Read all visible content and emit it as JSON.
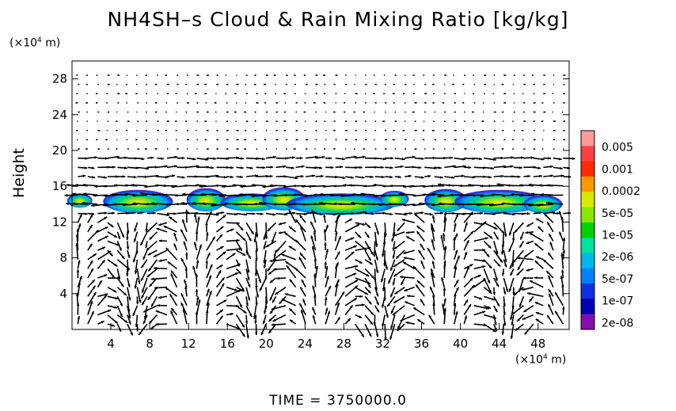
{
  "title": "NH4SH–s Cloud & Rain Mixing Ratio [kg/kg]",
  "ylabel": "Height",
  "y_unit": "(×10⁴ m)",
  "x_unit": "(×10⁴ m)",
  "time_label": "TIME = 3750000.0",
  "chart_data": {
    "type": "heatmap",
    "title": "NH4SH–s Cloud & Rain Mixing Ratio [kg/kg]",
    "xlabel": "",
    "ylabel": "Height",
    "x_unit": "(×10⁴ m)",
    "y_unit": "(×10⁴ m)",
    "xlim": [
      0,
      51.2
    ],
    "ylim": [
      0,
      30
    ],
    "x_ticks": [
      4,
      8,
      12,
      16,
      20,
      24,
      28,
      32,
      36,
      40,
      44,
      48
    ],
    "y_ticks": [
      4,
      8,
      12,
      16,
      20,
      24,
      28
    ],
    "colorbar": {
      "labels": [
        "0.005",
        "0.001",
        "0.0002",
        "5e-05",
        "1e-05",
        "2e-06",
        "5e-07",
        "1e-07",
        "2e-08"
      ],
      "colors": [
        "#ff9a9a",
        "#ff4040",
        "#ff2a00",
        "#ff9900",
        "#d8e800",
        "#88e600",
        "#00d000",
        "#00e0a0",
        "#00b8e8",
        "#0080ff",
        "#1030e0",
        "#0000b0",
        "#8010b0"
      ]
    },
    "cloud_blobs": [
      {
        "x": 0.8,
        "y": 14.4,
        "rx": 1.3,
        "ry": 0.8
      },
      {
        "x": 6.8,
        "y": 14.3,
        "rx": 3.6,
        "ry": 1.3
      },
      {
        "x": 13.8,
        "y": 14.5,
        "rx": 2.0,
        "ry": 1.3
      },
      {
        "x": 18.5,
        "y": 14.2,
        "rx": 3.2,
        "ry": 1.0
      },
      {
        "x": 21.8,
        "y": 14.6,
        "rx": 2.2,
        "ry": 1.3
      },
      {
        "x": 27.7,
        "y": 14.0,
        "rx": 5.6,
        "ry": 1.2
      },
      {
        "x": 33.2,
        "y": 14.6,
        "rx": 1.5,
        "ry": 0.9
      },
      {
        "x": 38.5,
        "y": 14.4,
        "rx": 2.2,
        "ry": 1.3
      },
      {
        "x": 44.0,
        "y": 14.3,
        "rx": 4.6,
        "ry": 1.3
      },
      {
        "x": 48.5,
        "y": 14.0,
        "rx": 2.0,
        "ry": 1.0
      }
    ]
  }
}
